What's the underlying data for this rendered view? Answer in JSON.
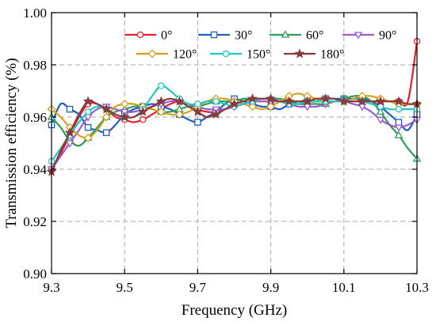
{
  "chart_data": {
    "type": "line",
    "xlabel": "Frequency (GHz)",
    "ylabel": "Transmission efficiency (%)",
    "xlim": [
      9.3,
      10.3
    ],
    "ylim": [
      0.9,
      1.0
    ],
    "xticks": [
      9.3,
      9.5,
      9.7,
      9.9,
      10.1,
      10.3
    ],
    "xtick_labels": [
      "9.3",
      "9.5",
      "9.7",
      "9.9",
      "10.1",
      "10.3"
    ],
    "yticks": [
      0.9,
      0.92,
      0.94,
      0.96,
      0.98,
      1.0
    ],
    "ytick_labels": [
      "0.90",
      "0.92",
      "0.94",
      "0.96",
      "0.98",
      "1.00"
    ],
    "grid": true,
    "legend_position": "top",
    "x": [
      9.3,
      9.325,
      9.35,
      9.375,
      9.4,
      9.425,
      9.45,
      9.475,
      9.5,
      9.525,
      9.55,
      9.575,
      9.6,
      9.625,
      9.65,
      9.675,
      9.7,
      9.725,
      9.75,
      9.775,
      9.8,
      9.825,
      9.85,
      9.875,
      9.9,
      9.925,
      9.95,
      9.975,
      10.0,
      10.025,
      10.05,
      10.075,
      10.1,
      10.125,
      10.15,
      10.175,
      10.2,
      10.225,
      10.25,
      10.275,
      10.3
    ],
    "series": [
      {
        "name": "0°",
        "color": "#e8202a",
        "marker": "circle",
        "values": [
          0.94,
          0.946,
          0.953,
          0.96,
          0.965,
          0.965,
          0.963,
          0.96,
          0.959,
          0.958,
          0.959,
          0.961,
          0.963,
          0.965,
          0.966,
          0.965,
          0.963,
          0.962,
          0.962,
          0.963,
          0.964,
          0.965,
          0.966,
          0.966,
          0.966,
          0.966,
          0.966,
          0.966,
          0.966,
          0.966,
          0.966,
          0.966,
          0.966,
          0.966,
          0.966,
          0.966,
          0.966,
          0.966,
          0.966,
          0.966,
          0.989
        ]
      },
      {
        "name": "30°",
        "color": "#1f5fc0",
        "marker": "square",
        "values": [
          0.957,
          0.965,
          0.963,
          0.961,
          0.956,
          0.955,
          0.954,
          0.957,
          0.961,
          0.963,
          0.964,
          0.965,
          0.964,
          0.963,
          0.961,
          0.959,
          0.958,
          0.96,
          0.962,
          0.965,
          0.967,
          0.966,
          0.965,
          0.964,
          0.964,
          0.963,
          0.965,
          0.966,
          0.966,
          0.966,
          0.967,
          0.967,
          0.967,
          0.967,
          0.967,
          0.966,
          0.964,
          0.961,
          0.958,
          0.955,
          0.961
        ]
      },
      {
        "name": "60°",
        "color": "#2aa05a",
        "marker": "triangle-up",
        "values": [
          0.96,
          0.956,
          0.951,
          0.949,
          0.952,
          0.956,
          0.96,
          0.962,
          0.963,
          0.964,
          0.964,
          0.963,
          0.962,
          0.962,
          0.963,
          0.964,
          0.964,
          0.965,
          0.966,
          0.966,
          0.966,
          0.967,
          0.967,
          0.967,
          0.967,
          0.967,
          0.966,
          0.965,
          0.965,
          0.965,
          0.965,
          0.966,
          0.967,
          0.968,
          0.968,
          0.966,
          0.962,
          0.957,
          0.953,
          0.948,
          0.944
        ]
      },
      {
        "name": "90°",
        "color": "#9b59d0",
        "marker": "triangle-down",
        "values": [
          0.94,
          0.945,
          0.95,
          0.955,
          0.96,
          0.963,
          0.964,
          0.963,
          0.962,
          0.962,
          0.963,
          0.964,
          0.965,
          0.966,
          0.966,
          0.965,
          0.964,
          0.963,
          0.963,
          0.963,
          0.964,
          0.965,
          0.966,
          0.966,
          0.966,
          0.966,
          0.965,
          0.964,
          0.964,
          0.964,
          0.965,
          0.966,
          0.966,
          0.965,
          0.964,
          0.962,
          0.959,
          0.957,
          0.956,
          0.957,
          0.959
        ]
      },
      {
        "name": "120°",
        "color": "#d4a020",
        "marker": "diamond",
        "values": [
          0.963,
          0.96,
          0.956,
          0.953,
          0.952,
          0.955,
          0.96,
          0.964,
          0.965,
          0.965,
          0.964,
          0.963,
          0.962,
          0.961,
          0.961,
          0.962,
          0.964,
          0.966,
          0.967,
          0.967,
          0.966,
          0.965,
          0.964,
          0.963,
          0.964,
          0.966,
          0.968,
          0.969,
          0.968,
          0.967,
          0.966,
          0.966,
          0.966,
          0.967,
          0.968,
          0.968,
          0.967,
          0.966,
          0.965,
          0.965,
          0.965
        ]
      },
      {
        "name": "150°",
        "color": "#20c8c0",
        "marker": "circle",
        "values": [
          0.943,
          0.948,
          0.953,
          0.958,
          0.962,
          0.964,
          0.963,
          0.961,
          0.96,
          0.96,
          0.963,
          0.968,
          0.972,
          0.97,
          0.967,
          0.965,
          0.965,
          0.966,
          0.966,
          0.965,
          0.964,
          0.965,
          0.966,
          0.967,
          0.967,
          0.966,
          0.965,
          0.965,
          0.966,
          0.966,
          0.966,
          0.966,
          0.966,
          0.966,
          0.966,
          0.965,
          0.964,
          0.963,
          0.963,
          0.963,
          0.963
        ]
      },
      {
        "name": "180°",
        "color": "#8b3a3a",
        "marker": "star",
        "values": [
          0.939,
          0.947,
          0.954,
          0.961,
          0.966,
          0.965,
          0.963,
          0.961,
          0.96,
          0.96,
          0.962,
          0.964,
          0.966,
          0.967,
          0.966,
          0.964,
          0.962,
          0.96,
          0.961,
          0.963,
          0.965,
          0.966,
          0.967,
          0.967,
          0.967,
          0.966,
          0.966,
          0.966,
          0.966,
          0.967,
          0.967,
          0.967,
          0.966,
          0.966,
          0.966,
          0.966,
          0.966,
          0.966,
          0.966,
          0.965,
          0.965
        ]
      }
    ]
  }
}
